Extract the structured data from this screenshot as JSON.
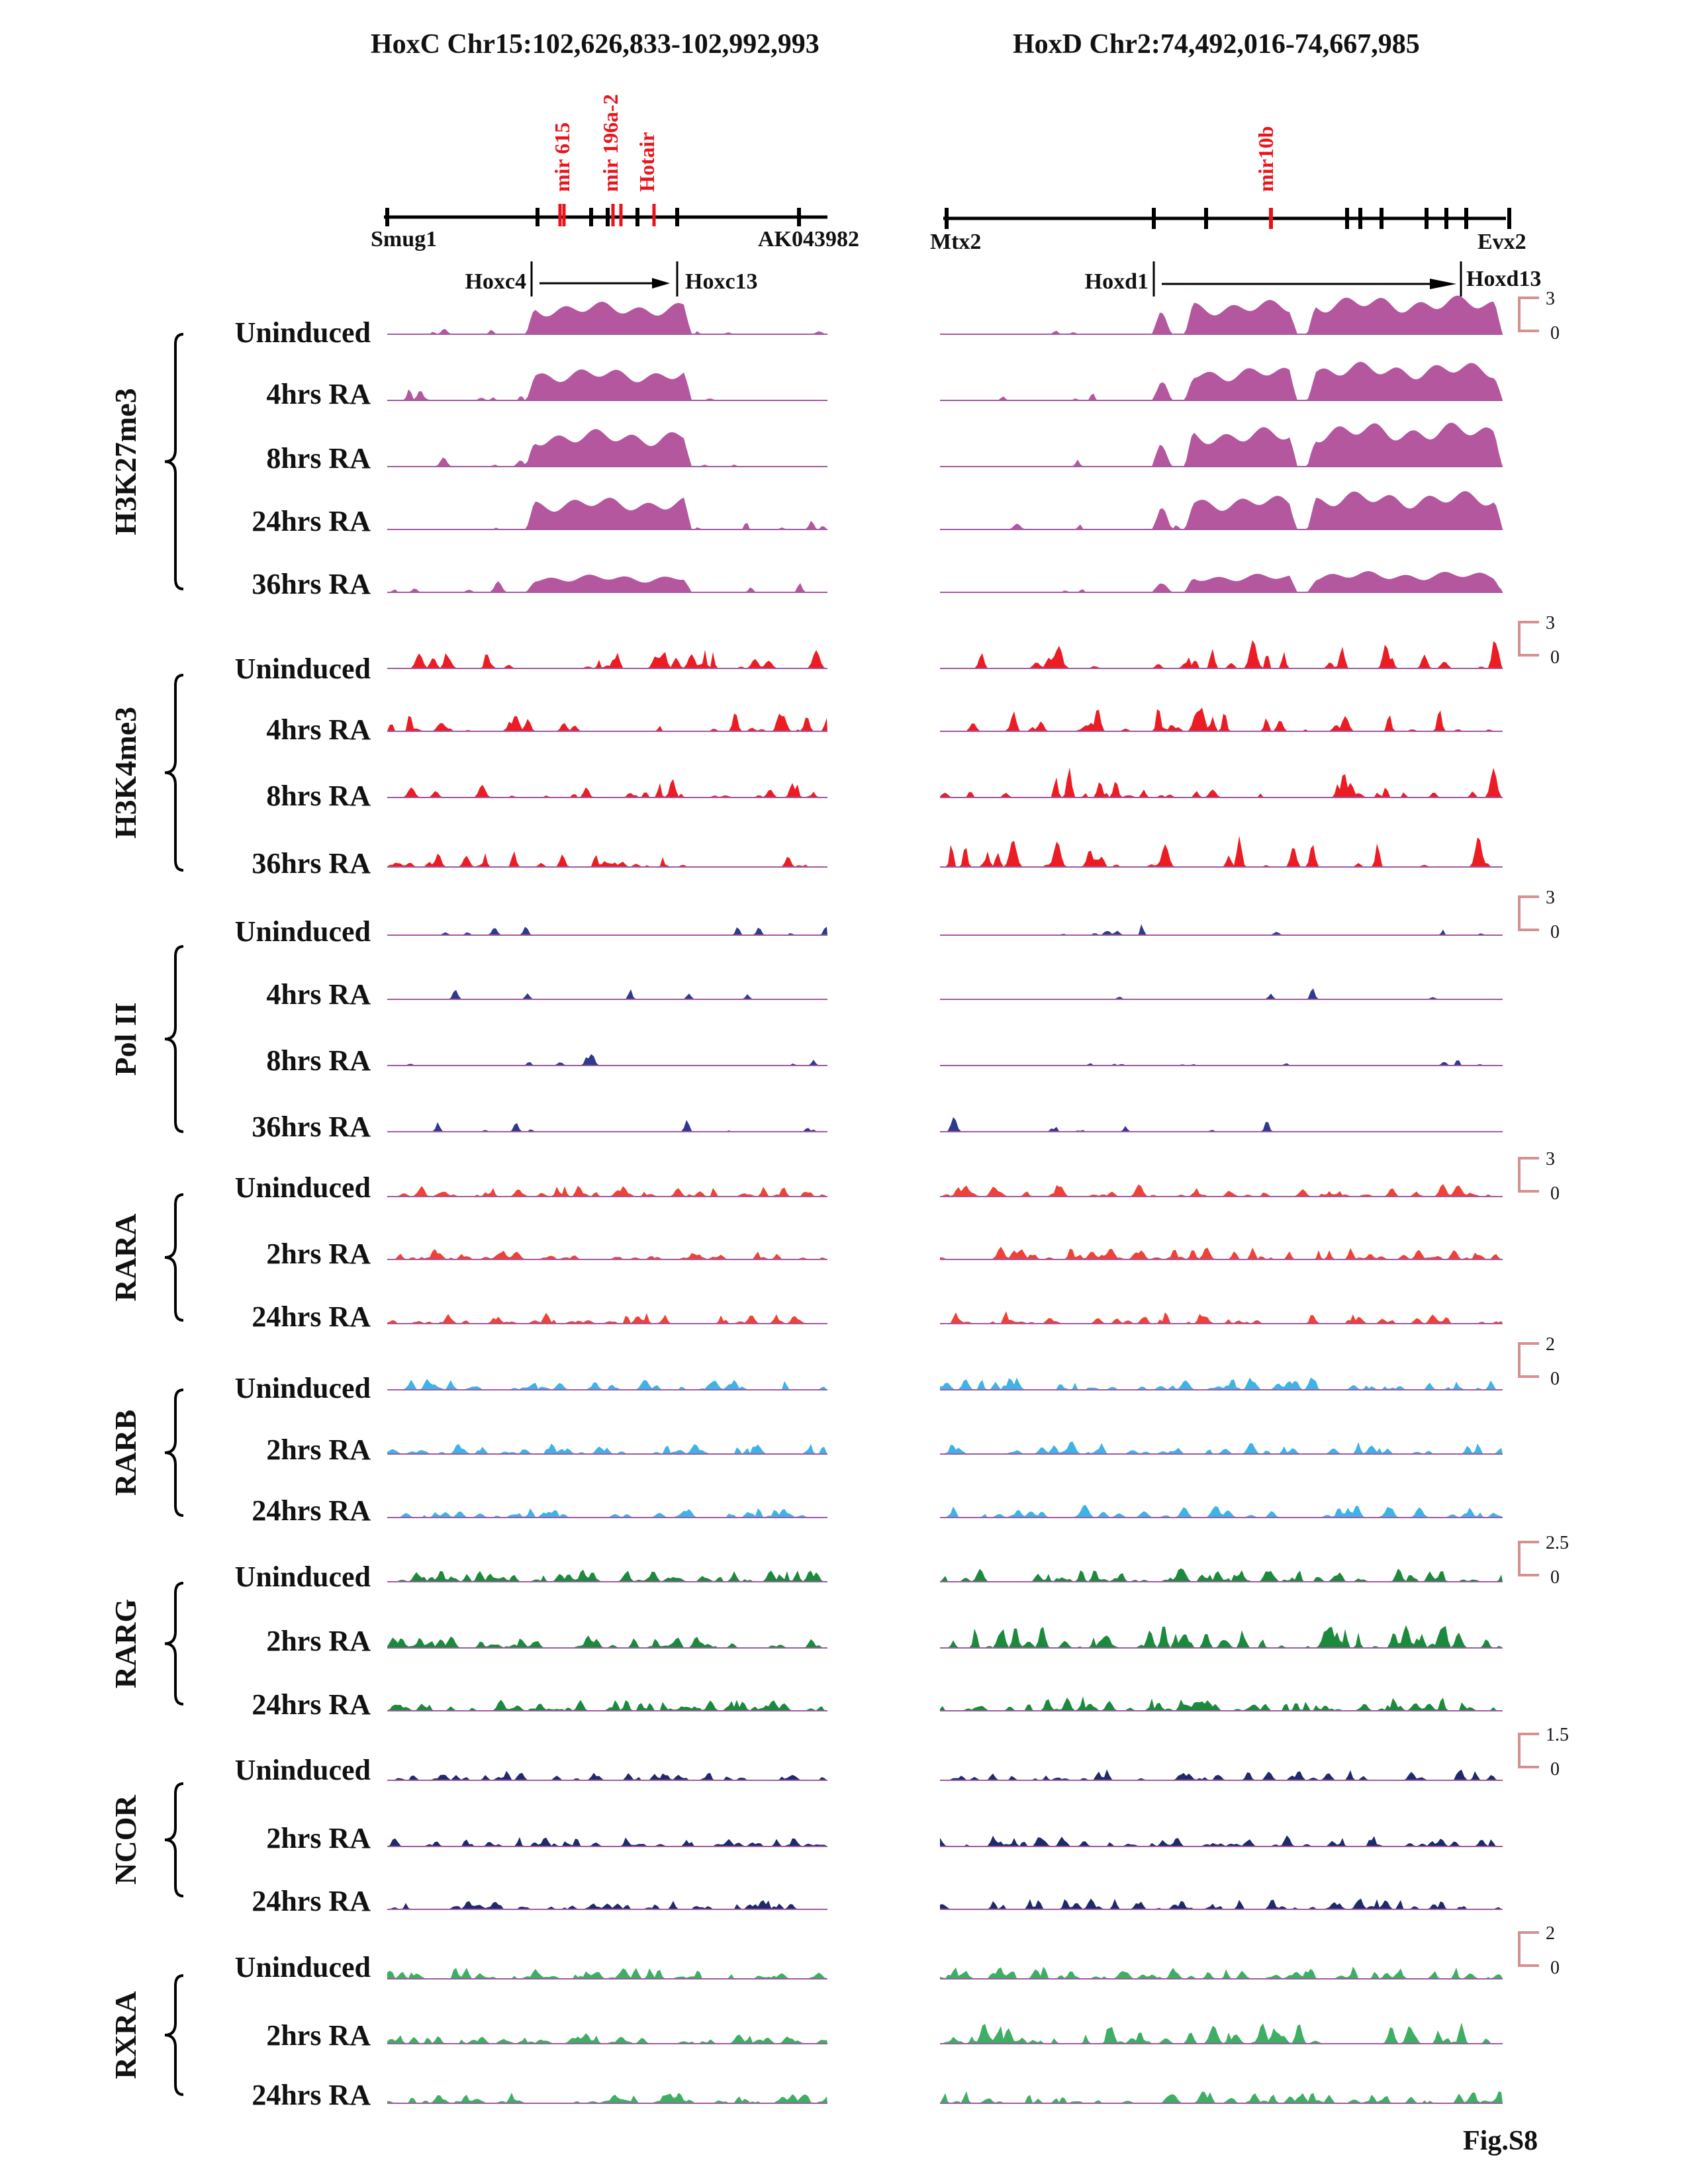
{
  "titles": {
    "hoxc": "HoxC Chr15:102,626,833-102,992,993",
    "hoxd": "HoxD Chr2:74,492,016-74,667,985"
  },
  "hoxc_genes": {
    "left_end": "Smug1",
    "right_end": "AK043982",
    "arrow_start": "Hoxc4",
    "arrow_end": "Hoxc13",
    "mirnas": [
      "mir 615",
      "mir 196a-2",
      "Hotair"
    ]
  },
  "hoxd_genes": {
    "left_end": "Mtx2",
    "right_end": "Evx2",
    "arrow_start": "Hoxd1",
    "arrow_end": "Hoxd13",
    "mirnas": [
      "mir10b"
    ]
  },
  "figure_label": "Fig.S8",
  "colors": {
    "H3K27me3": "#b5579e",
    "H3K4me3": "#ec1c24",
    "PolII": "#2e3a8c",
    "RARA": "#ef4136",
    "RARB": "#3fb3e6",
    "RARG": "#1c8a3c",
    "NCOR": "#1f2a6b",
    "RXRA": "#3dae63",
    "baseline": "#a05aa0",
    "scale": "#d4918f",
    "mir": "#e8141b"
  },
  "groups": [
    {
      "name": "H3K27me3",
      "color_key": "H3K27me3",
      "scale_top": "3",
      "scale_bottom": "0",
      "rows": [
        "Uninduced",
        "4hrs RA",
        "8hrs RA",
        "24hrs RA",
        "36hrs RA"
      ]
    },
    {
      "name": "H3K4me3",
      "color_key": "H3K4me3",
      "scale_top": "3",
      "scale_bottom": "0",
      "rows": [
        "Uninduced",
        "4hrs RA",
        "8hrs RA",
        "36hrs RA"
      ]
    },
    {
      "name": "Pol II",
      "color_key": "PolII",
      "scale_top": "3",
      "scale_bottom": "0",
      "rows": [
        "Uninduced",
        "4hrs RA",
        "8hrs RA",
        "36hrs RA"
      ]
    },
    {
      "name": "RARA",
      "color_key": "RARA",
      "scale_top": "3",
      "scale_bottom": "0",
      "rows": [
        "Uninduced",
        "2hrs RA",
        "24hrs RA"
      ]
    },
    {
      "name": "RARB",
      "color_key": "RARB",
      "scale_top": "2",
      "scale_bottom": "0",
      "rows": [
        "Uninduced",
        "2hrs RA",
        "24hrs RA"
      ]
    },
    {
      "name": "RARG",
      "color_key": "RARG",
      "scale_top": "2.5",
      "scale_bottom": "0",
      "rows": [
        "Uninduced",
        "2hrs RA",
        "24hrs RA"
      ]
    },
    {
      "name": "NCOR",
      "color_key": "NCOR",
      "scale_top": "1.5",
      "scale_bottom": "0",
      "rows": [
        "Uninduced",
        "2hrs RA",
        "24hrs RA"
      ]
    },
    {
      "name": "RXRA",
      "color_key": "RXRA",
      "scale_top": "2",
      "scale_bottom": "0",
      "rows": [
        "Uninduced",
        "2hrs RA",
        "24hrs RA"
      ]
    }
  ]
}
